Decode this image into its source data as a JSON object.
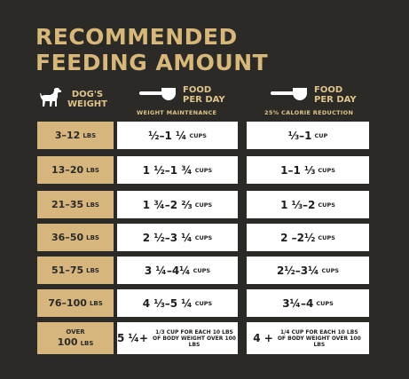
{
  "title": {
    "line1": "RECOMMENDED",
    "line2": "FEEDING AMOUNT"
  },
  "headers": {
    "dog_icon": "dog-icon",
    "weight_line1": "DOG'S",
    "weight_line2": "WEIGHT",
    "scoop_icon": "measuring-cup-icon",
    "food_line1": "FOOD",
    "food_line2": "PER DAY",
    "maintenance_sub": "WEIGHT MAINTENANCE",
    "reduction_sub": "25% CALORIE REDUCTION"
  },
  "rows": [
    {
      "weight": "3–12",
      "unit": "LBS",
      "maintenance": "½–1 ¼",
      "maintenance_unit": "CUPS",
      "reduction": "⅓–1",
      "reduction_unit": "CUP"
    },
    {
      "weight": "13–20",
      "unit": "LBS",
      "maintenance": "1 ½–1 ¾",
      "maintenance_unit": "CUPS",
      "reduction": "1–1 ⅓",
      "reduction_unit": "CUPS"
    },
    {
      "weight": "21–35",
      "unit": "LBS",
      "maintenance": "1 ¾–2 ⅔",
      "maintenance_unit": "CUPS",
      "reduction": "1 ⅓–2",
      "reduction_unit": "CUPS"
    },
    {
      "weight": "36–50",
      "unit": "LBS",
      "maintenance": "2 ½–3 ¼",
      "maintenance_unit": "CUPS",
      "reduction": "2 –2½",
      "reduction_unit": "CUPS"
    },
    {
      "weight": "51–75",
      "unit": "LBS",
      "maintenance": "3 ¼–4¼",
      "maintenance_unit": "CUPS",
      "reduction": "2½–3¼",
      "reduction_unit": "CUPS"
    },
    {
      "weight": "76–100",
      "unit": "LBS",
      "maintenance": "4 ⅓–5 ¼",
      "maintenance_unit": "CUPS",
      "reduction": "3¼–4",
      "reduction_unit": "CUPS"
    },
    {
      "weight_top": "OVER",
      "weight": "100",
      "unit": "LBS",
      "maintenance": "5 ¼+",
      "maintenance_fine": "1/3 CUP FOR EACH 10 LBS OF BODY WEIGHT OVER 100 LBS",
      "reduction": "4 +",
      "reduction_fine": "1/4 CUP FOR EACH 10 LBS OF BODY WEIGHT OVER 100 LBS"
    }
  ],
  "colors": {
    "background": "#2b2a27",
    "gold": "#d6b67c",
    "white": "#ffffff"
  }
}
